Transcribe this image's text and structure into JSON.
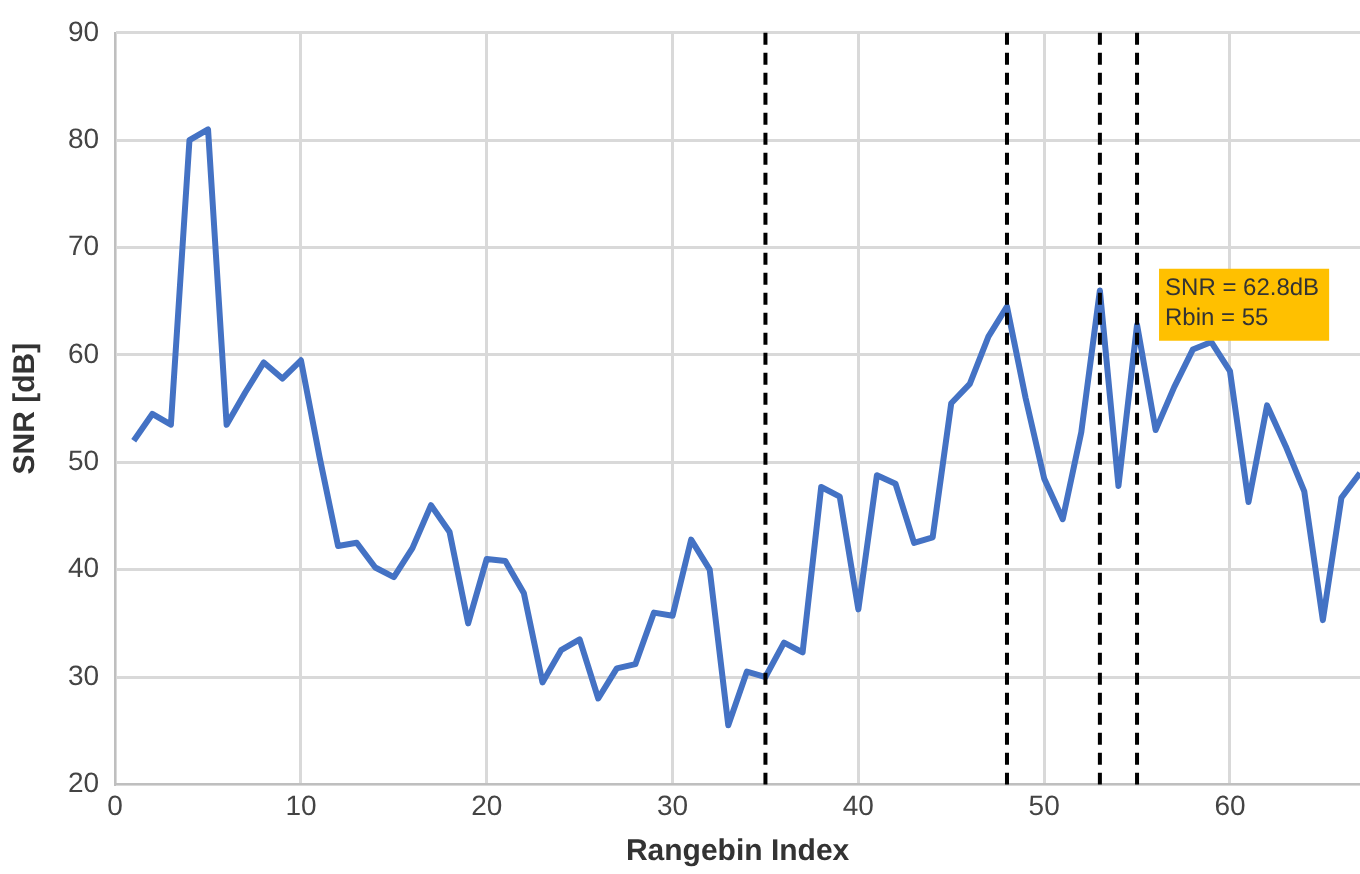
{
  "chart_data": {
    "type": "line",
    "xlabel": "Rangebin Index",
    "ylabel": "SNR [dB]",
    "x": [
      1,
      2,
      3,
      4,
      5,
      6,
      7,
      8,
      9,
      10,
      11,
      12,
      13,
      14,
      15,
      16,
      17,
      18,
      19,
      20,
      21,
      22,
      23,
      24,
      25,
      26,
      27,
      28,
      29,
      30,
      31,
      32,
      33,
      34,
      35,
      36,
      37,
      38,
      39,
      40,
      41,
      42,
      43,
      44,
      45,
      46,
      47,
      48,
      49,
      50,
      51,
      52,
      53,
      54,
      55,
      56,
      57,
      58,
      59,
      60,
      61,
      62,
      63,
      64,
      65,
      66,
      67
    ],
    "series": [
      {
        "color": "#4472c4",
        "values": [
          52,
          54.5,
          53.5,
          80,
          81,
          53.5,
          56.5,
          59.3,
          57.8,
          59.5,
          50.5,
          42.2,
          42.5,
          40.2,
          39.3,
          42,
          46,
          43.5,
          35,
          41,
          40.8,
          37.8,
          29.5,
          32.5,
          33.5,
          28,
          30.8,
          31.2,
          36,
          35.7,
          42.8,
          40,
          25.5,
          30.5,
          30,
          33.2,
          32.3,
          47.7,
          46.8,
          36.3,
          48.8,
          48,
          42.5,
          43,
          55.5,
          57.3,
          61.7,
          64.5,
          56,
          48.5,
          44.7,
          52.8,
          66,
          47.8,
          62.8,
          53,
          57,
          60.5,
          61.2,
          58.5,
          46.3,
          55.3,
          51.5,
          47.3,
          35.3,
          46.7,
          49
        ]
      }
    ],
    "xlim": [
      0,
      67
    ],
    "xticks": [
      0,
      10,
      20,
      30,
      40,
      50,
      60
    ],
    "ylim": [
      20,
      90
    ],
    "yticks": [
      20,
      30,
      40,
      50,
      60,
      70,
      80,
      90
    ],
    "grid": true,
    "legend": false,
    "marker": "none",
    "line_style": "solid",
    "ref_lines": [
      {
        "axis": "x",
        "value": 35,
        "color": "#000000",
        "line_style": "dashed"
      },
      {
        "axis": "x",
        "value": 48,
        "color": "#000000",
        "line_style": "dashed"
      },
      {
        "axis": "x",
        "value": 53,
        "color": "#000000",
        "line_style": "dashed"
      },
      {
        "axis": "x",
        "value": 55,
        "color": "#000000",
        "line_style": "dashed"
      }
    ],
    "annotations": [
      {
        "text": "SNR = 62.8dB\nRbin = 55",
        "x": 55,
        "y": 62.8
      }
    ]
  }
}
